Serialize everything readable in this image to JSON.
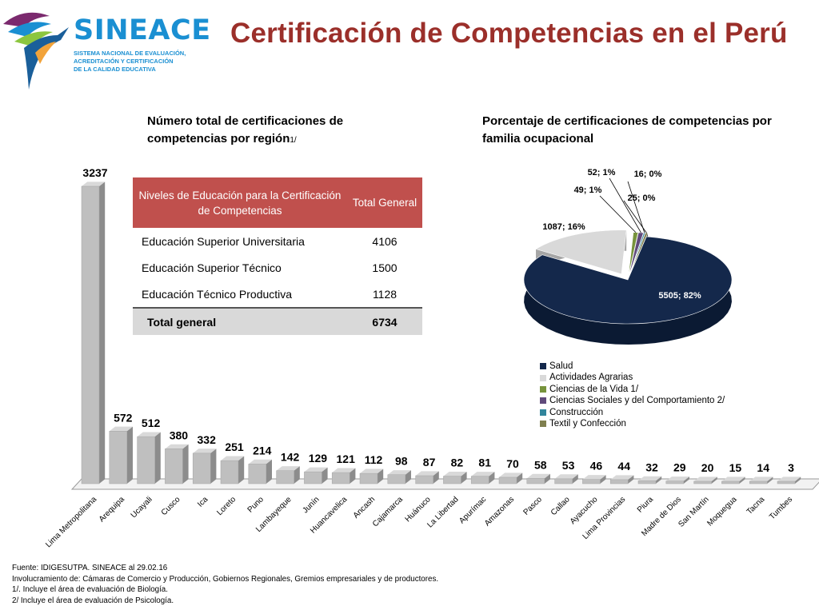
{
  "header": {
    "logo_name": "SINEACE",
    "logo_lines": [
      "SISTEMA NACIONAL DE EVALUACIÓN,",
      "ACREDITACIÓN Y CERTIFICACIÓN",
      "DE LA CALIDAD EDUCATIVA"
    ],
    "title": "Certificación de Competencias en el Perú"
  },
  "bar_section": {
    "subtitle": "Número total de certificaciones de competencias por región",
    "subtitle_note": "1/"
  },
  "pie_section": {
    "subtitle": "Porcentaje de certificaciones de competencias por familia ocupacional"
  },
  "table": {
    "header_col1": "Niveles de Educación para la Certificación de Competencias",
    "header_col2": "Total General",
    "rows": [
      {
        "label": "Educación Superior Universitaria",
        "value": "4106"
      },
      {
        "label": "Educación Superior Técnico",
        "value": "1500"
      },
      {
        "label": "Educación Técnico Productiva",
        "value": "1128"
      }
    ],
    "total_label": "Total general",
    "total_value": "6734",
    "header_color": "#c0504d"
  },
  "chart_data": [
    {
      "type": "bar",
      "categories": [
        "Lima Metropolitana",
        "Arequipa",
        "Ucayali",
        "Cusco",
        "Ica",
        "Loreto",
        "Puno",
        "Lambayeque",
        "Junín",
        "Huancavelica",
        "Ancash",
        "Cajamarca",
        "Huánuco",
        "La Libertad",
        "Apurímac",
        "Amazonas",
        "Pasco",
        "Callao",
        "Ayacucho",
        "Lima Provincias",
        "Piura",
        "Madre de Dios",
        "San Martín",
        "Moquegua",
        "Tacna",
        "Tumbes"
      ],
      "values": [
        3237,
        572,
        512,
        380,
        332,
        251,
        214,
        142,
        129,
        121,
        112,
        98,
        87,
        82,
        81,
        70,
        58,
        53,
        46,
        44,
        32,
        29,
        20,
        15,
        14,
        3
      ],
      "bar_color": "#bfbfbf",
      "ylim": [
        0,
        3237
      ]
    },
    {
      "type": "pie",
      "labels": [
        "Salud",
        "Actividades Agrarias",
        "Ciencias de la Vida 1/",
        "Ciencias Sociales y del Comportamiento 2/",
        "Construcción",
        "Textil y Confección"
      ],
      "values": [
        5505,
        1087,
        49,
        52,
        16,
        25
      ],
      "percent_labels": [
        "82%",
        "16%",
        "1%",
        "1%",
        "0%",
        "0%"
      ],
      "colors": [
        "#14284b",
        "#d9d9d9",
        "#77933c",
        "#604a7b",
        "#31859c",
        "#7f7f4f"
      ],
      "legend_position": "bottom"
    }
  ],
  "footer": {
    "lines": [
      "Fuente: IDIGESUTPA. SINEACE al  29.02.16",
      "Involucramiento de:  Cámaras de Comercio y Producción, Gobiernos Regionales, Gremios empresariales y de productores.",
      "1/. Incluye  el área de evaluación de Biología.",
      "2/ Incluye  el área  de evaluación de Psicología."
    ]
  }
}
